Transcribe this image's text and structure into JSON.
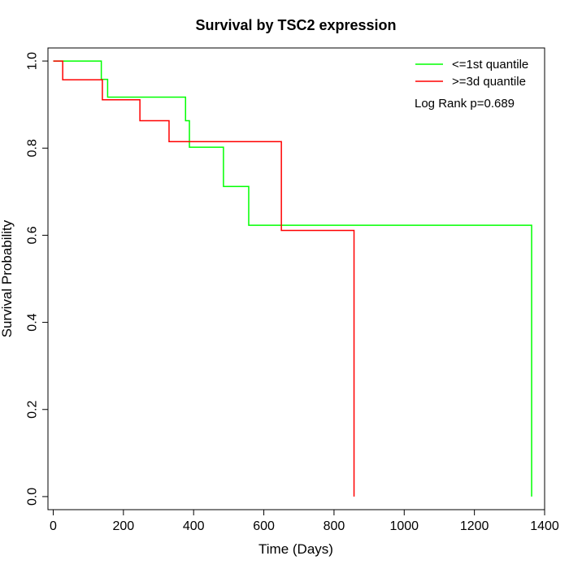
{
  "chart_data": {
    "type": "line",
    "title": "Survival by TSC2 expression",
    "xlabel": "Time (Days)",
    "ylabel": "Survival Probability",
    "xlim": [
      -15,
      1400
    ],
    "ylim": [
      -0.03,
      1.03
    ],
    "x_ticks": [
      0,
      200,
      400,
      600,
      800,
      1000,
      1200,
      1400
    ],
    "y_ticks": [
      0.0,
      0.2,
      0.4,
      0.6,
      0.8,
      1.0
    ],
    "x_tick_labels": [
      "0",
      "200",
      "400",
      "600",
      "800",
      "1000",
      "1200",
      "1400"
    ],
    "y_tick_labels": [
      "0.0",
      "0.2",
      "0.4",
      "0.6",
      "0.8",
      "1.0"
    ],
    "grid": false,
    "legend_position": "top-right",
    "annotation": "Log Rank p=0.689",
    "series": [
      {
        "name": "<=1st quantile",
        "color": "#00ff00",
        "x": [
          0,
          137,
          137,
          155,
          155,
          377,
          377,
          388,
          388,
          485,
          485,
          557,
          557,
          1363,
          1363
        ],
        "y": [
          1.0,
          1.0,
          0.958,
          0.958,
          0.917,
          0.917,
          0.863,
          0.863,
          0.802,
          0.802,
          0.712,
          0.712,
          0.623,
          0.623,
          0.0
        ]
      },
      {
        "name": ">=3d quantile",
        "color": "#ff0000",
        "x": [
          0,
          27,
          27,
          140,
          140,
          247,
          247,
          330,
          330,
          650,
          650,
          857,
          857
        ],
        "y": [
          1.0,
          1.0,
          0.957,
          0.957,
          0.911,
          0.911,
          0.863,
          0.863,
          0.815,
          0.815,
          0.611,
          0.611,
          0.0
        ]
      }
    ]
  }
}
